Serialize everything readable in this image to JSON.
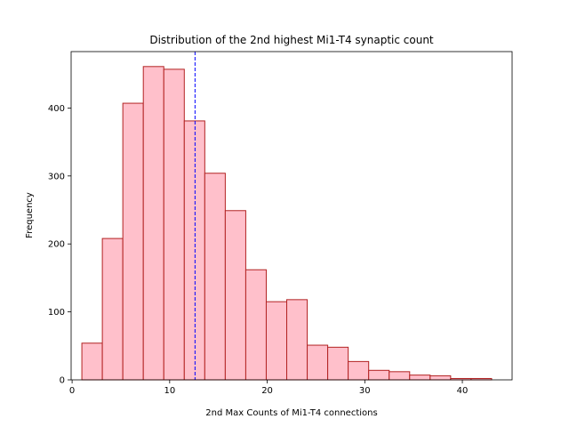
{
  "chart_data": {
    "type": "bar",
    "title": "Distribution of the 2nd highest Mi1-T4 synaptic count",
    "xlabel": "2nd Max Counts of Mi1-T4 connections",
    "ylabel": "Frequency",
    "xlim": [
      -0.1,
      45.1
    ],
    "ylim": [
      0,
      483
    ],
    "xticks": [
      0,
      10,
      20,
      30,
      40
    ],
    "yticks": [
      0,
      100,
      200,
      300,
      400
    ],
    "bin_edges": [
      1.0,
      3.1,
      5.2,
      7.3,
      9.4,
      11.5,
      13.6,
      15.7,
      17.8,
      19.9,
      22.0,
      24.1,
      26.2,
      28.3,
      30.4,
      32.5,
      34.6,
      36.7,
      38.8,
      40.9,
      43.0
    ],
    "values": [
      54,
      208,
      407,
      461,
      457,
      381,
      304,
      249,
      162,
      115,
      118,
      51,
      48,
      27,
      14,
      12,
      7,
      6,
      2,
      2
    ],
    "mean_line": {
      "x": 12.6,
      "color": "#0000ff",
      "style": "dashed"
    },
    "colors": {
      "bar_fill": "#ffc0cb",
      "bar_edge": "#b22222"
    }
  }
}
